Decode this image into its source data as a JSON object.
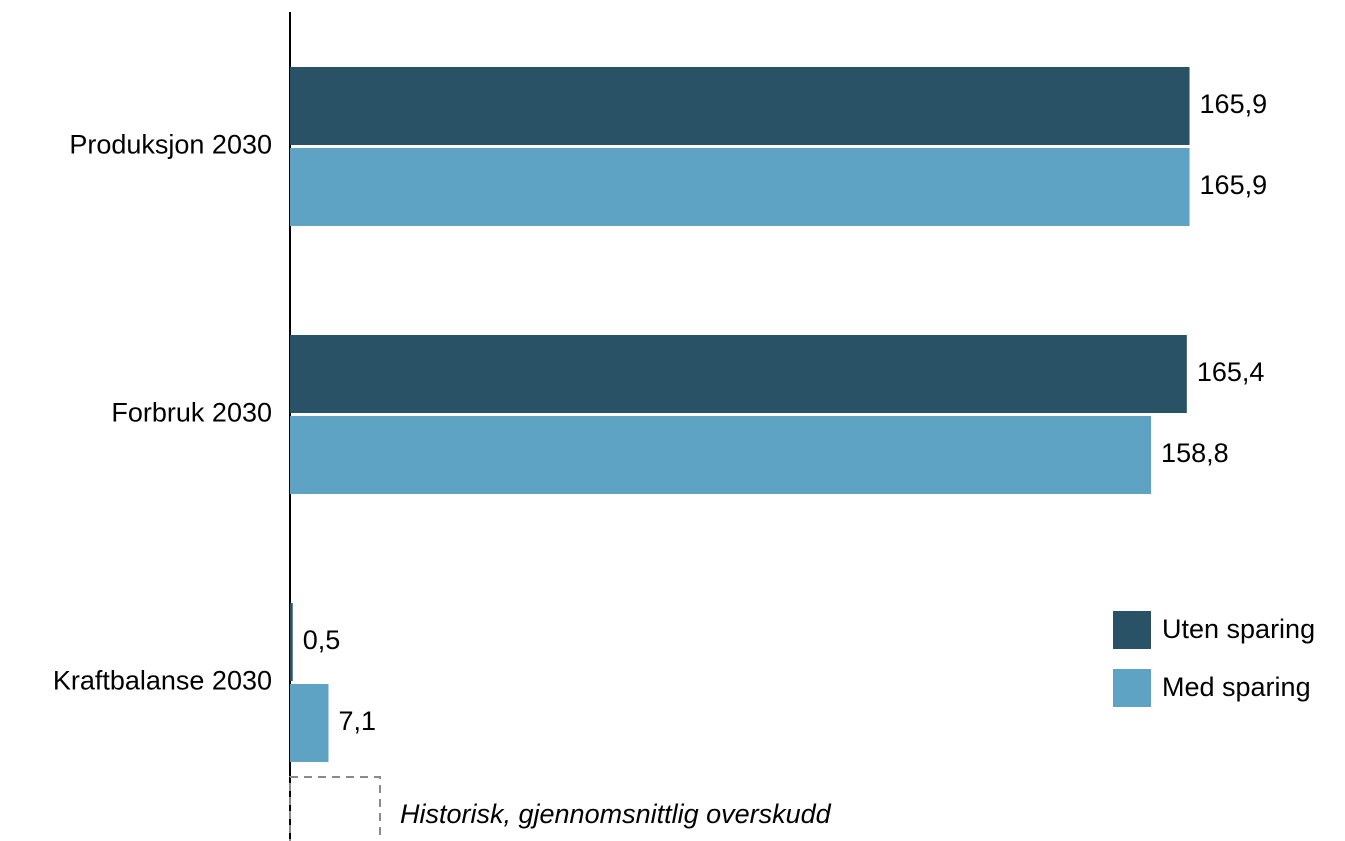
{
  "chart_data": {
    "type": "bar",
    "orientation": "horizontal",
    "categories": [
      "Produksjon 2030",
      "Forbruk 2030",
      "Kraftbalanse 2030"
    ],
    "series": [
      {
        "name": "Uten sparing",
        "color": "#2a5266",
        "values": [
          165.9,
          165.4,
          0.5
        ],
        "value_labels": [
          "165,9",
          "165,4",
          "0,5"
        ]
      },
      {
        "name": "Med sparing",
        "color": "#5fa3c4",
        "values": [
          165.9,
          158.8,
          7.1
        ],
        "value_labels": [
          "165,9",
          "158,8",
          "7,1"
        ]
      }
    ],
    "xlim": [
      0,
      180
    ],
    "annotation": {
      "text": "Historisk, gjennomsnittlig overskudd",
      "value": 16.6
    },
    "legend": "right"
  }
}
